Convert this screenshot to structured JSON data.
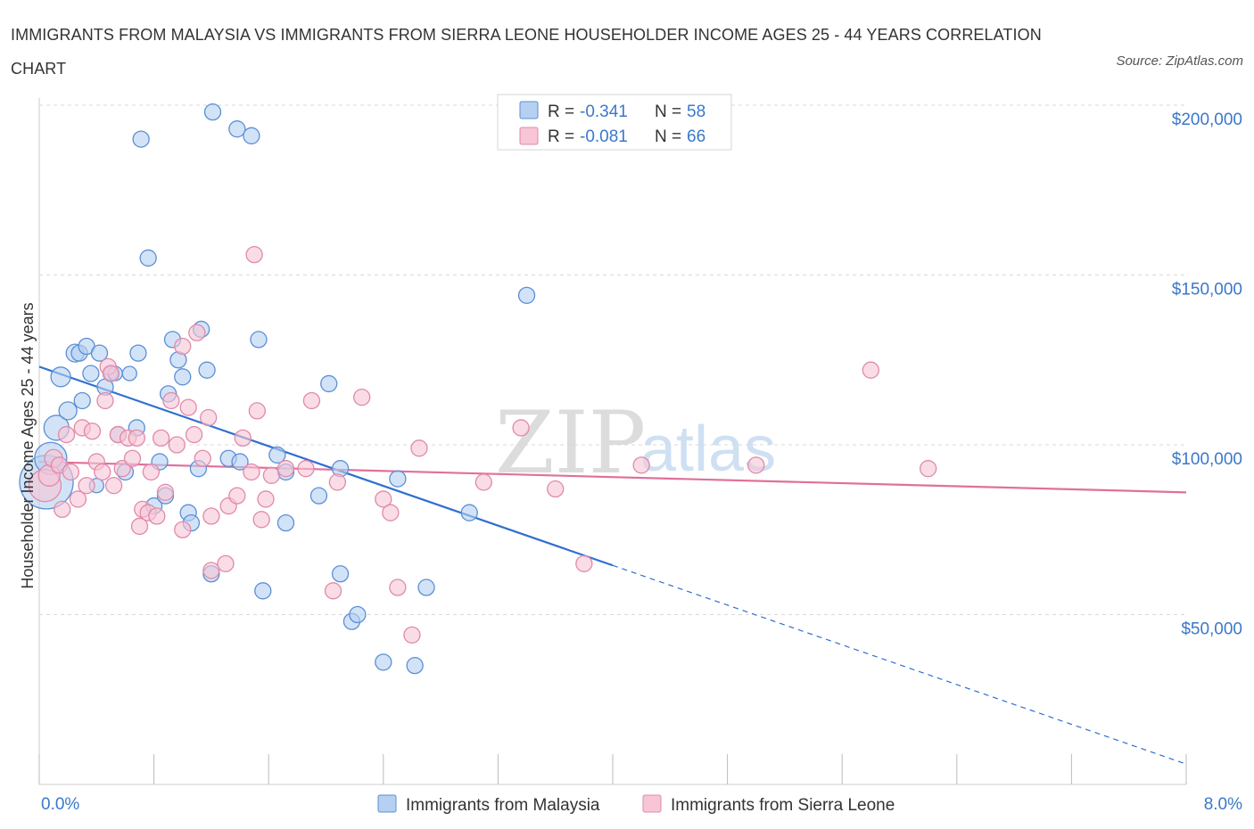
{
  "title": "IMMIGRANTS FROM MALAYSIA VS IMMIGRANTS FROM SIERRA LEONE HOUSEHOLDER INCOME AGES 25 - 44 YEARS CORRELATION CHART",
  "source": "Source: ZipAtlas.com",
  "watermark": {
    "part1": "ZIP",
    "part2": "atlas"
  },
  "colors": {
    "malaysia_fill": "#b6d0f2",
    "malaysia_stroke": "#5b8fd6",
    "malaysia_line": "#2f6fd0",
    "sierra_fill": "#f7c5d6",
    "sierra_stroke": "#e08aa8",
    "sierra_line": "#e0709a",
    "grid": "#d8d8d8",
    "axis_text": "#3a78c9"
  },
  "stats": [
    {
      "r_label": "R =",
      "r": "-0.341",
      "n_label": "N =",
      "n": "58"
    },
    {
      "r_label": "R =",
      "r": "-0.081",
      "n_label": "N =",
      "n": "66"
    }
  ],
  "chart_data": {
    "type": "scatter",
    "title": "IMMIGRANTS FROM MALAYSIA VS IMMIGRANTS FROM SIERRA LEONE HOUSEHOLDER INCOME AGES 25 - 44 YEARS CORRELATION CHART",
    "xlabel": "",
    "ylabel": "Householder Income Ages 25 - 44 years",
    "xlim": [
      0,
      8
    ],
    "ylim": [
      0,
      200000
    ],
    "x_tick_labels": [
      "0.0%",
      "8.0%"
    ],
    "y_ticks": [
      50000,
      100000,
      150000,
      200000
    ],
    "y_tick_labels": [
      "$50,000",
      "$100,000",
      "$150,000",
      "$200,000"
    ],
    "grid": true,
    "legend_position": "bottom-center",
    "series": [
      {
        "name": "Immigrants from Malaysia",
        "trend": {
          "x0": 0.0,
          "y0": 123000,
          "x_solid_end": 4.0,
          "x1": 8.0,
          "y1": 6000
        },
        "points": [
          [
            0.05,
            89000,
            30
          ],
          [
            0.08,
            96000,
            18
          ],
          [
            0.12,
            105000,
            14
          ],
          [
            0.15,
            120000,
            11
          ],
          [
            0.2,
            110000,
            10
          ],
          [
            0.25,
            127000,
            10
          ],
          [
            0.28,
            127000,
            9
          ],
          [
            0.3,
            113000,
            9
          ],
          [
            0.33,
            129000,
            9
          ],
          [
            0.36,
            121000,
            9
          ],
          [
            0.4,
            88000,
            8
          ],
          [
            0.42,
            127000,
            9
          ],
          [
            0.46,
            117000,
            9
          ],
          [
            0.5,
            121000,
            8
          ],
          [
            0.53,
            121000,
            8
          ],
          [
            0.55,
            103000,
            9
          ],
          [
            0.6,
            92000,
            9
          ],
          [
            0.63,
            121000,
            8
          ],
          [
            0.68,
            105000,
            9
          ],
          [
            0.69,
            127000,
            9
          ],
          [
            0.71,
            190000,
            9
          ],
          [
            0.76,
            155000,
            9
          ],
          [
            0.8,
            82000,
            9
          ],
          [
            0.84,
            95000,
            9
          ],
          [
            0.88,
            85000,
            9
          ],
          [
            0.9,
            115000,
            9
          ],
          [
            0.93,
            131000,
            9
          ],
          [
            0.97,
            125000,
            9
          ],
          [
            1.0,
            120000,
            9
          ],
          [
            1.04,
            80000,
            9
          ],
          [
            1.06,
            77000,
            9
          ],
          [
            1.11,
            93000,
            9
          ],
          [
            1.13,
            134000,
            9
          ],
          [
            1.17,
            122000,
            9
          ],
          [
            1.2,
            62000,
            9
          ],
          [
            1.21,
            198000,
            9
          ],
          [
            1.32,
            96000,
            9
          ],
          [
            1.4,
            95000,
            9
          ],
          [
            1.38,
            193000,
            9
          ],
          [
            1.48,
            191000,
            9
          ],
          [
            1.53,
            131000,
            9
          ],
          [
            1.56,
            57000,
            9
          ],
          [
            1.66,
            97000,
            9
          ],
          [
            1.72,
            92000,
            9
          ],
          [
            1.72,
            77000,
            9
          ],
          [
            1.95,
            85000,
            9
          ],
          [
            2.02,
            118000,
            9
          ],
          [
            2.1,
            93000,
            9
          ],
          [
            2.1,
            62000,
            9
          ],
          [
            2.18,
            48000,
            9
          ],
          [
            2.22,
            50000,
            9
          ],
          [
            2.4,
            36000,
            9
          ],
          [
            2.5,
            90000,
            9
          ],
          [
            2.62,
            35000,
            9
          ],
          [
            2.7,
            58000,
            9
          ],
          [
            3.0,
            80000,
            9
          ],
          [
            3.4,
            144000,
            9
          ]
        ]
      },
      {
        "name": "Immigrants from Sierra Leone",
        "trend": {
          "x0": 0.0,
          "y0": 95000,
          "x1": 8.0,
          "y1": 86000
        },
        "points": [
          [
            0.04,
            88000,
            18
          ],
          [
            0.07,
            91000,
            12
          ],
          [
            0.1,
            96000,
            10
          ],
          [
            0.14,
            94000,
            9
          ],
          [
            0.16,
            81000,
            9
          ],
          [
            0.19,
            103000,
            9
          ],
          [
            0.22,
            92000,
            9
          ],
          [
            0.27,
            84000,
            9
          ],
          [
            0.3,
            105000,
            9
          ],
          [
            0.33,
            88000,
            9
          ],
          [
            0.37,
            104000,
            9
          ],
          [
            0.4,
            95000,
            9
          ],
          [
            0.44,
            92000,
            9
          ],
          [
            0.46,
            113000,
            9
          ],
          [
            0.48,
            123000,
            9
          ],
          [
            0.5,
            121000,
            9
          ],
          [
            0.52,
            88000,
            9
          ],
          [
            0.55,
            103000,
            9
          ],
          [
            0.58,
            93000,
            9
          ],
          [
            0.62,
            102000,
            9
          ],
          [
            0.65,
            96000,
            9
          ],
          [
            0.68,
            102000,
            9
          ],
          [
            0.7,
            76000,
            9
          ],
          [
            0.72,
            81000,
            9
          ],
          [
            0.76,
            80000,
            9
          ],
          [
            0.78,
            92000,
            9
          ],
          [
            0.82,
            79000,
            9
          ],
          [
            0.85,
            102000,
            9
          ],
          [
            0.88,
            86000,
            9
          ],
          [
            0.92,
            113000,
            9
          ],
          [
            0.96,
            100000,
            9
          ],
          [
            1.0,
            129000,
            9
          ],
          [
            1.0,
            75000,
            9
          ],
          [
            1.04,
            111000,
            9
          ],
          [
            1.08,
            103000,
            9
          ],
          [
            1.1,
            133000,
            9
          ],
          [
            1.14,
            96000,
            9
          ],
          [
            1.18,
            108000,
            9
          ],
          [
            1.2,
            79000,
            9
          ],
          [
            1.2,
            63000,
            9
          ],
          [
            1.3,
            65000,
            9
          ],
          [
            1.32,
            82000,
            9
          ],
          [
            1.38,
            85000,
            9
          ],
          [
            1.42,
            102000,
            9
          ],
          [
            1.48,
            92000,
            9
          ],
          [
            1.5,
            156000,
            9
          ],
          [
            1.52,
            110000,
            9
          ],
          [
            1.55,
            78000,
            9
          ],
          [
            1.58,
            84000,
            9
          ],
          [
            1.62,
            91000,
            9
          ],
          [
            1.72,
            93000,
            9
          ],
          [
            1.86,
            93000,
            9
          ],
          [
            1.9,
            113000,
            9
          ],
          [
            2.05,
            57000,
            9
          ],
          [
            2.08,
            89000,
            9
          ],
          [
            2.25,
            114000,
            9
          ],
          [
            2.4,
            84000,
            9
          ],
          [
            2.45,
            80000,
            9
          ],
          [
            2.5,
            58000,
            9
          ],
          [
            2.6,
            44000,
            9
          ],
          [
            2.65,
            99000,
            9
          ],
          [
            3.1,
            89000,
            9
          ],
          [
            3.36,
            105000,
            9
          ],
          [
            3.6,
            87000,
            9
          ],
          [
            3.8,
            65000,
            9
          ],
          [
            4.2,
            94000,
            9
          ],
          [
            5.0,
            94000,
            9
          ],
          [
            5.8,
            122000,
            9
          ],
          [
            6.2,
            93000,
            9
          ]
        ]
      }
    ]
  }
}
